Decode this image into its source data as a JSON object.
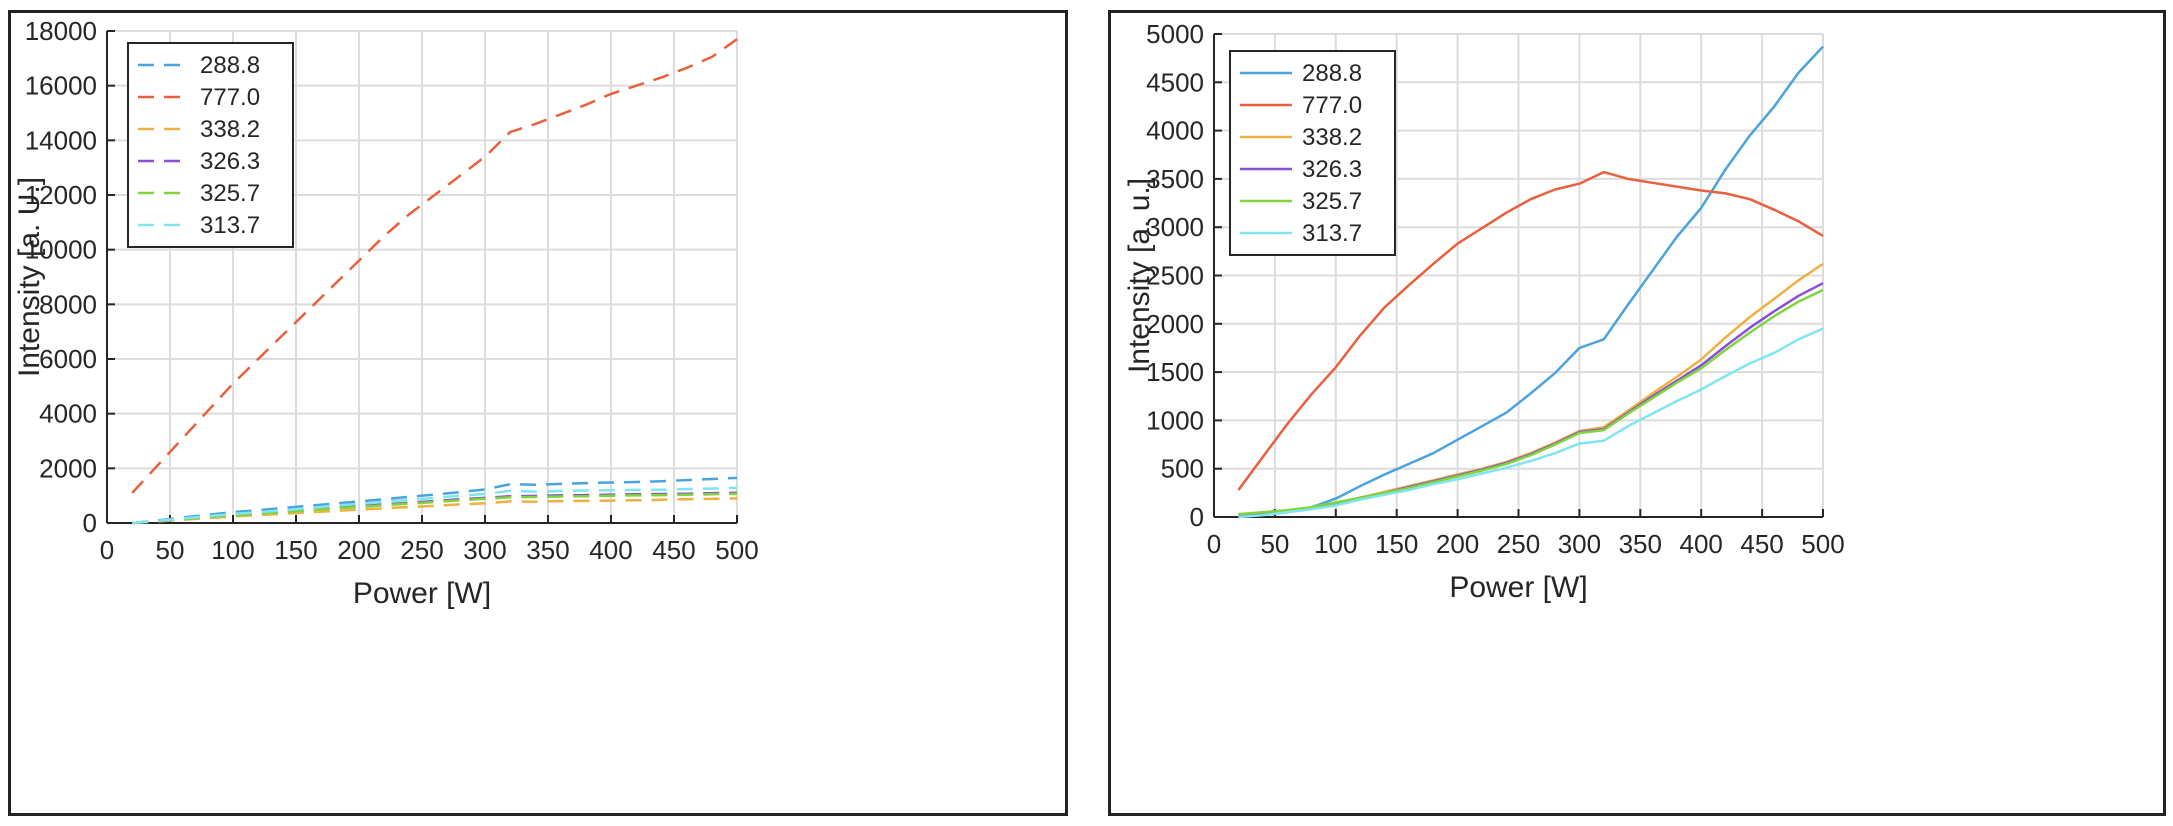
{
  "chart_data": [
    {
      "type": "line",
      "line_style": "dashed",
      "xlabel": "Power [W]",
      "ylabel": "Intensity [a. U.]",
      "xlim": [
        0,
        500
      ],
      "ylim": [
        0,
        18000
      ],
      "xticks": [
        0,
        50,
        100,
        150,
        200,
        250,
        300,
        350,
        400,
        450,
        500
      ],
      "yticks": [
        0,
        2000,
        4000,
        6000,
        8000,
        10000,
        12000,
        14000,
        16000,
        18000
      ],
      "grid": true,
      "legend": "top-left",
      "x": [
        20,
        40,
        60,
        80,
        100,
        120,
        140,
        160,
        180,
        200,
        220,
        240,
        260,
        280,
        300,
        320,
        340,
        360,
        380,
        400,
        420,
        440,
        460,
        480,
        500
      ],
      "series": [
        {
          "name": "288.8",
          "color": "#4aa3df",
          "values": [
            0,
            90,
            200,
            300,
            400,
            470,
            550,
            630,
            710,
            790,
            870,
            960,
            1040,
            1130,
            1230,
            1420,
            1400,
            1430,
            1460,
            1480,
            1500,
            1530,
            1570,
            1610,
            1650
          ]
        },
        {
          "name": "777.0",
          "color": "#e8603c",
          "values": [
            1100,
            2100,
            3100,
            4100,
            5100,
            6000,
            6900,
            7800,
            8700,
            9600,
            10500,
            11300,
            12000,
            12700,
            13400,
            14300,
            14600,
            14950,
            15300,
            15700,
            16000,
            16300,
            16650,
            17050,
            17700
          ]
        },
        {
          "name": "338.2",
          "color": "#f0b040",
          "values": [
            0,
            60,
            120,
            180,
            240,
            290,
            340,
            390,
            440,
            490,
            540,
            580,
            630,
            680,
            720,
            790,
            780,
            800,
            810,
            820,
            830,
            850,
            870,
            880,
            900
          ]
        },
        {
          "name": "326.3",
          "color": "#8b4fd6",
          "values": [
            0,
            70,
            150,
            220,
            290,
            350,
            420,
            490,
            550,
            610,
            680,
            740,
            800,
            870,
            920,
            980,
            990,
            1010,
            1020,
            1040,
            1050,
            1060,
            1070,
            1090,
            1110
          ]
        },
        {
          "name": "325.7",
          "color": "#7fd63a",
          "values": [
            0,
            70,
            140,
            210,
            280,
            340,
            400,
            470,
            530,
            590,
            650,
            710,
            770,
            830,
            890,
            940,
            950,
            970,
            980,
            1000,
            1010,
            1020,
            1030,
            1050,
            1070
          ]
        },
        {
          "name": "313.7",
          "color": "#7fe5f0",
          "values": [
            0,
            80,
            170,
            250,
            330,
            400,
            470,
            550,
            630,
            700,
            780,
            850,
            920,
            1000,
            1060,
            1180,
            1150,
            1170,
            1190,
            1200,
            1210,
            1220,
            1240,
            1260,
            1290
          ]
        }
      ]
    },
    {
      "type": "line",
      "line_style": "solid",
      "xlabel": "Power [W]",
      "ylabel": "Intensity [a. u.]",
      "xlim": [
        0,
        500
      ],
      "ylim": [
        0,
        5000
      ],
      "xticks": [
        0,
        50,
        100,
        150,
        200,
        250,
        300,
        350,
        400,
        450,
        500
      ],
      "yticks": [
        0,
        500,
        1000,
        1500,
        2000,
        2500,
        3000,
        3500,
        4000,
        4500,
        5000
      ],
      "grid": true,
      "legend": "top-left",
      "x": [
        20,
        40,
        60,
        80,
        100,
        120,
        140,
        160,
        180,
        200,
        220,
        240,
        260,
        280,
        300,
        320,
        340,
        360,
        380,
        400,
        420,
        440,
        460,
        480,
        500
      ],
      "series": [
        {
          "name": "288.8",
          "color": "#4aa3df",
          "values": [
            0,
            20,
            50,
            100,
            190,
            320,
            440,
            550,
            660,
            800,
            940,
            1080,
            1280,
            1490,
            1750,
            1840,
            2200,
            2550,
            2900,
            3200,
            3600,
            3950,
            4250,
            4600,
            4870
          ]
        },
        {
          "name": "777.0",
          "color": "#e8603c",
          "values": [
            280,
            620,
            960,
            1270,
            1550,
            1880,
            2170,
            2400,
            2620,
            2830,
            2990,
            3150,
            3290,
            3390,
            3450,
            3570,
            3500,
            3460,
            3420,
            3380,
            3350,
            3290,
            3180,
            3060,
            2910
          ]
        },
        {
          "name": "338.2",
          "color": "#f0b040",
          "values": [
            20,
            40,
            60,
            90,
            140,
            200,
            260,
            320,
            380,
            440,
            500,
            570,
            660,
            770,
            890,
            930,
            1100,
            1280,
            1450,
            1630,
            1860,
            2070,
            2260,
            2450,
            2620
          ]
        },
        {
          "name": "326.3",
          "color": "#8b4fd6",
          "values": [
            20,
            40,
            60,
            90,
            140,
            200,
            250,
            310,
            370,
            430,
            490,
            560,
            650,
            760,
            880,
            910,
            1080,
            1250,
            1410,
            1570,
            1770,
            1960,
            2130,
            2290,
            2420
          ]
        },
        {
          "name": "325.7",
          "color": "#7fd63a",
          "values": [
            30,
            50,
            70,
            100,
            150,
            200,
            250,
            300,
            360,
            420,
            480,
            550,
            640,
            750,
            870,
            900,
            1070,
            1230,
            1390,
            1540,
            1730,
            1910,
            2080,
            2230,
            2350
          ]
        },
        {
          "name": "313.7",
          "color": "#7fe5f0",
          "values": [
            0,
            20,
            50,
            80,
            120,
            180,
            230,
            280,
            340,
            390,
            450,
            510,
            580,
            660,
            760,
            790,
            940,
            1070,
            1200,
            1320,
            1460,
            1590,
            1700,
            1840,
            1950
          ]
        }
      ]
    }
  ]
}
